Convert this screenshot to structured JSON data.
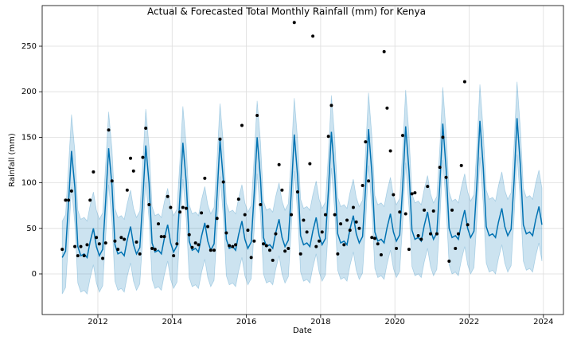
{
  "chart_data": {
    "type": "line",
    "title": "Actual & Forecasted Total Monthly Rainfall (mm) for Kenya",
    "x_label": "Date",
    "y_label": "Rainfall (mm)",
    "xlim": [
      2010.5,
      2024.54
    ],
    "ylim": [
      -44.6,
      294.6
    ],
    "xticks": [
      2012,
      2014,
      2016,
      2018,
      2020,
      2022,
      2024
    ],
    "yticks": [
      0,
      50,
      100,
      150,
      200,
      250
    ],
    "grid": true,
    "x": [
      2011.04,
      2011.13,
      2011.21,
      2011.29,
      2011.38,
      2011.46,
      2011.54,
      2011.63,
      2011.71,
      2011.79,
      2011.88,
      2011.96,
      2012.04,
      2012.13,
      2012.21,
      2012.29,
      2012.38,
      2012.46,
      2012.54,
      2012.63,
      2012.71,
      2012.79,
      2012.88,
      2012.96,
      2013.04,
      2013.13,
      2013.21,
      2013.29,
      2013.38,
      2013.46,
      2013.54,
      2013.63,
      2013.71,
      2013.79,
      2013.88,
      2013.96,
      2014.04,
      2014.13,
      2014.21,
      2014.29,
      2014.38,
      2014.46,
      2014.54,
      2014.63,
      2014.71,
      2014.79,
      2014.88,
      2014.96,
      2015.04,
      2015.13,
      2015.21,
      2015.29,
      2015.38,
      2015.46,
      2015.54,
      2015.63,
      2015.71,
      2015.79,
      2015.88,
      2015.96,
      2016.04,
      2016.13,
      2016.21,
      2016.29,
      2016.38,
      2016.46,
      2016.54,
      2016.63,
      2016.71,
      2016.79,
      2016.88,
      2016.96,
      2017.04,
      2017.13,
      2017.21,
      2017.29,
      2017.38,
      2017.46,
      2017.54,
      2017.63,
      2017.71,
      2017.79,
      2017.88,
      2017.96,
      2018.04,
      2018.13,
      2018.21,
      2018.29,
      2018.38,
      2018.46,
      2018.54,
      2018.63,
      2018.71,
      2018.79,
      2018.88,
      2018.96,
      2019.04,
      2019.13,
      2019.21,
      2019.29,
      2019.38,
      2019.46,
      2019.54,
      2019.63,
      2019.71,
      2019.79,
      2019.88,
      2019.96,
      2020.04,
      2020.13,
      2020.21,
      2020.29,
      2020.38,
      2020.46,
      2020.54,
      2020.63,
      2020.71,
      2020.79,
      2020.88,
      2020.96,
      2021.04,
      2021.13,
      2021.21,
      2021.29,
      2021.38,
      2021.46,
      2021.54,
      2021.63,
      2021.71,
      2021.79,
      2021.88,
      2021.96,
      2022.04,
      2022.13,
      2022.21,
      2022.29,
      2022.38,
      2022.46,
      2022.54,
      2022.63,
      2022.71,
      2022.79,
      2022.88,
      2022.96,
      2023.04,
      2023.13,
      2023.21,
      2023.29,
      2023.38,
      2023.46,
      2023.54,
      2023.63,
      2023.71,
      2023.79,
      2023.88,
      2023.96
    ],
    "forecast": {
      "color": "#0072B2",
      "values": [
        18,
        25,
        78,
        135,
        95,
        30,
        20,
        22,
        18,
        35,
        50,
        30,
        20,
        27,
        80,
        138,
        97,
        32,
        22,
        24,
        20,
        37,
        52,
        32,
        22,
        29,
        82,
        141,
        99,
        34,
        24,
        26,
        22,
        39,
        54,
        34,
        24,
        31,
        84,
        144,
        101,
        36,
        26,
        28,
        24,
        41,
        56,
        36,
        26,
        33,
        86,
        147,
        103,
        38,
        28,
        30,
        26,
        43,
        58,
        38,
        28,
        35,
        88,
        150,
        105,
        40,
        30,
        32,
        28,
        45,
        60,
        40,
        30,
        37,
        90,
        153,
        107,
        42,
        32,
        34,
        30,
        47,
        62,
        42,
        32,
        39,
        92,
        156,
        109,
        44,
        34,
        36,
        32,
        49,
        64,
        44,
        34,
        41,
        94,
        159,
        111,
        46,
        36,
        38,
        34,
        51,
        66,
        46,
        36,
        43,
        96,
        162,
        113,
        48,
        38,
        40,
        36,
        53,
        68,
        48,
        38,
        45,
        98,
        165,
        115,
        50,
        40,
        42,
        38,
        55,
        70,
        50,
        40,
        47,
        100,
        168,
        117,
        52,
        42,
        44,
        40,
        57,
        72,
        52,
        42,
        49,
        102,
        171,
        119,
        54,
        44,
        46,
        42,
        59,
        74,
        54
      ]
    },
    "interval": {
      "color": "#0072B2",
      "lower": [
        -22,
        -15,
        38,
        95,
        55,
        -10,
        -20,
        -18,
        -22,
        -5,
        10,
        -10,
        -20,
        -13,
        40,
        98,
        57,
        -8,
        -18,
        -16,
        -20,
        -3,
        12,
        -8,
        -18,
        -11,
        42,
        101,
        59,
        -6,
        -16,
        -14,
        -18,
        -1,
        14,
        -6,
        -16,
        -9,
        44,
        104,
        61,
        -4,
        -14,
        -12,
        -16,
        1,
        16,
        -4,
        -14,
        -7,
        46,
        107,
        63,
        -2,
        -12,
        -10,
        -14,
        3,
        18,
        -2,
        -12,
        -5,
        48,
        110,
        65,
        0,
        -10,
        -8,
        -12,
        5,
        20,
        0,
        -10,
        -3,
        50,
        113,
        67,
        2,
        -8,
        -6,
        -10,
        7,
        22,
        2,
        -8,
        -1,
        52,
        116,
        69,
        4,
        -6,
        -4,
        -8,
        9,
        24,
        4,
        -6,
        1,
        54,
        119,
        71,
        6,
        -4,
        -2,
        -6,
        11,
        26,
        6,
        -4,
        3,
        56,
        122,
        73,
        8,
        -2,
        0,
        -4,
        13,
        28,
        8,
        -2,
        5,
        58,
        125,
        75,
        10,
        0,
        2,
        -2,
        15,
        30,
        10,
        0,
        7,
        60,
        128,
        77,
        12,
        2,
        4,
        0,
        17,
        32,
        12,
        2,
        9,
        62,
        131,
        79,
        14,
        4,
        6,
        2,
        19,
        34,
        14
      ],
      "upper": [
        58,
        65,
        118,
        175,
        135,
        70,
        60,
        62,
        58,
        75,
        90,
        70,
        60,
        67,
        120,
        178,
        137,
        72,
        62,
        64,
        60,
        77,
        92,
        72,
        62,
        69,
        122,
        181,
        139,
        74,
        64,
        66,
        62,
        79,
        94,
        74,
        64,
        71,
        124,
        184,
        141,
        76,
        66,
        68,
        64,
        81,
        96,
        76,
        66,
        73,
        126,
        187,
        143,
        78,
        68,
        70,
        66,
        83,
        98,
        78,
        68,
        75,
        128,
        190,
        145,
        80,
        70,
        72,
        68,
        85,
        100,
        80,
        70,
        77,
        130,
        193,
        147,
        82,
        72,
        74,
        70,
        87,
        102,
        82,
        72,
        79,
        132,
        196,
        149,
        84,
        74,
        76,
        72,
        89,
        104,
        84,
        74,
        81,
        134,
        199,
        151,
        86,
        76,
        78,
        74,
        91,
        106,
        86,
        76,
        83,
        136,
        202,
        153,
        88,
        78,
        80,
        76,
        93,
        108,
        88,
        78,
        85,
        138,
        205,
        155,
        90,
        80,
        82,
        78,
        95,
        110,
        90,
        80,
        87,
        140,
        208,
        157,
        92,
        82,
        84,
        80,
        97,
        112,
        92,
        82,
        89,
        142,
        211,
        159,
        94,
        84,
        86,
        82,
        99,
        114,
        94
      ]
    },
    "observed": {
      "color": "#000000",
      "x": [
        2011.04,
        2011.13,
        2011.21,
        2011.29,
        2011.38,
        2011.46,
        2011.54,
        2011.63,
        2011.71,
        2011.79,
        2011.88,
        2011.96,
        2012.04,
        2012.13,
        2012.21,
        2012.29,
        2012.38,
        2012.46,
        2012.54,
        2012.63,
        2012.71,
        2012.79,
        2012.88,
        2012.96,
        2013.04,
        2013.13,
        2013.21,
        2013.29,
        2013.38,
        2013.46,
        2013.54,
        2013.63,
        2013.71,
        2013.79,
        2013.88,
        2013.96,
        2014.04,
        2014.13,
        2014.21,
        2014.29,
        2014.38,
        2014.46,
        2014.54,
        2014.63,
        2014.71,
        2014.79,
        2014.88,
        2014.96,
        2015.04,
        2015.13,
        2015.21,
        2015.29,
        2015.38,
        2015.46,
        2015.54,
        2015.63,
        2015.71,
        2015.79,
        2015.88,
        2015.96,
        2016.04,
        2016.13,
        2016.21,
        2016.29,
        2016.38,
        2016.46,
        2016.54,
        2016.63,
        2016.71,
        2016.79,
        2016.88,
        2016.96,
        2017.04,
        2017.13,
        2017.21,
        2017.29,
        2017.38,
        2017.46,
        2017.54,
        2017.63,
        2017.71,
        2017.79,
        2017.88,
        2017.96,
        2018.04,
        2018.13,
        2018.21,
        2018.29,
        2018.38,
        2018.46,
        2018.54,
        2018.63,
        2018.71,
        2018.79,
        2018.88,
        2018.96,
        2019.04,
        2019.13,
        2019.21,
        2019.29,
        2019.38,
        2019.46,
        2019.54,
        2019.63,
        2019.71,
        2019.79,
        2019.88,
        2019.96,
        2020.04,
        2020.13,
        2020.21,
        2020.29,
        2020.38,
        2020.46,
        2020.54,
        2020.63,
        2020.71,
        2020.79,
        2020.88,
        2020.96,
        2021.04,
        2021.13,
        2021.21,
        2021.29,
        2021.38,
        2021.46,
        2021.54,
        2021.63,
        2021.71,
        2021.79,
        2021.88,
        2021.96
      ],
      "values": [
        27,
        81,
        81,
        91,
        30,
        20,
        30,
        20,
        32,
        81,
        112,
        40,
        33,
        17,
        34,
        158,
        102,
        36,
        27,
        40,
        38,
        92,
        127,
        113,
        35,
        22,
        128,
        160,
        76,
        28,
        27,
        55,
        41,
        41,
        85,
        73,
        20,
        33,
        68,
        73,
        72,
        43,
        29,
        34,
        32,
        67,
        105,
        52,
        26,
        26,
        61,
        148,
        101,
        45,
        31,
        30,
        32,
        82,
        163,
        65,
        48,
        18,
        36,
        174,
        76,
        33,
        31,
        26,
        15,
        44,
        120,
        92,
        25,
        28,
        65,
        276,
        90,
        22,
        59,
        46,
        121,
        261,
        30,
        36,
        46,
        65,
        151,
        185,
        65,
        22,
        55,
        32,
        59,
        48,
        73,
        57,
        50,
        97,
        145,
        102,
        40,
        39,
        33,
        21,
        244,
        182,
        135,
        87,
        28,
        68,
        152,
        66,
        27,
        88,
        89,
        42,
        38,
        70,
        96,
        44,
        69,
        44,
        117,
        150,
        106,
        14,
        70,
        28,
        44,
        119,
        211,
        54
      ]
    }
  }
}
